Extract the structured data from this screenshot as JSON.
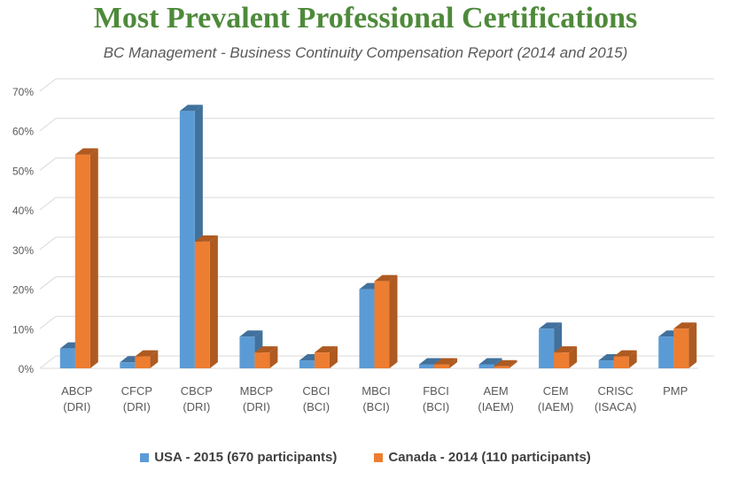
{
  "chart_data": {
    "type": "bar",
    "title": "Most Prevalent Professional Certifications",
    "subtitle": "BC Management - Business Continuity Compensation Report (2014 and 2015)",
    "categories": [
      [
        "ABCP",
        "(DRI)"
      ],
      [
        "CFCP",
        "(DRI)"
      ],
      [
        "CBCP",
        "(DRI)"
      ],
      [
        "MBCP",
        "(DRI)"
      ],
      [
        "CBCI",
        "(BCI)"
      ],
      [
        "MBCI",
        "(BCI)"
      ],
      [
        "FBCI",
        "(BCI)"
      ],
      [
        "AEM",
        "(IAEM)"
      ],
      [
        "CEM",
        "(IAEM)"
      ],
      [
        "CRISC",
        "(ISACA)"
      ],
      [
        "PMP",
        ""
      ]
    ],
    "series": [
      {
        "name": "USA - 2015 (670 participants)",
        "color": "#5b9bd5",
        "side": "#41719c",
        "values": [
          5,
          1.5,
          65,
          8,
          2,
          20,
          1,
          1,
          10,
          2,
          8
        ]
      },
      {
        "name": "Canada - 2014 (110 participants)",
        "color": "#ed7d31",
        "side": "#ae5a21",
        "values": [
          54,
          3,
          32,
          4,
          4,
          22,
          1,
          0.5,
          4,
          3,
          10
        ]
      }
    ],
    "yticks": [
      "0%",
      "10%",
      "20%",
      "30%",
      "40%",
      "50%",
      "60%",
      "70%"
    ],
    "ylim": [
      0,
      70
    ],
    "grid": true,
    "legend": "bottom"
  }
}
